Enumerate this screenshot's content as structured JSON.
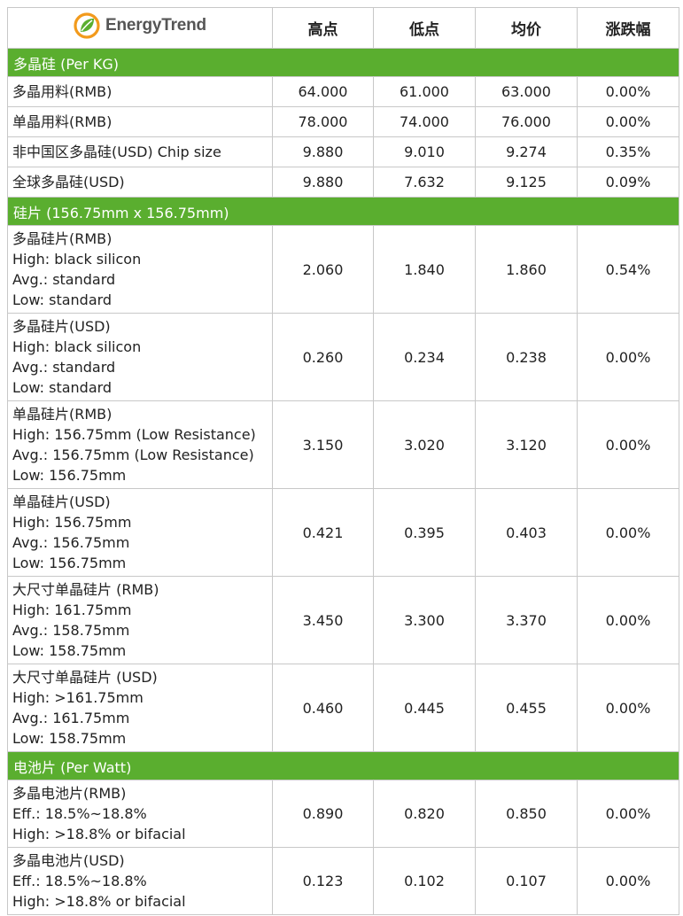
{
  "brand": {
    "name": "EnergyTrend",
    "colors": {
      "green": "#5aae2f",
      "orange": "#f29a1c"
    }
  },
  "columns": {
    "high": "高点",
    "low": "低点",
    "avg": "均价",
    "change": "涨跌幅"
  },
  "sections": [
    {
      "title": "多晶硅 (Per KG)",
      "rows": [
        {
          "lines": [
            "多晶用料(RMB)"
          ],
          "high": "64.000",
          "low": "61.000",
          "avg": "63.000",
          "change": "0.00%"
        },
        {
          "lines": [
            "单晶用料(RMB)"
          ],
          "high": "78.000",
          "low": "74.000",
          "avg": "76.000",
          "change": "0.00%"
        },
        {
          "lines": [
            "非中国区多晶硅(USD) Chip size"
          ],
          "high": "9.880",
          "low": "9.010",
          "avg": "9.274",
          "change": "0.35%"
        },
        {
          "lines": [
            "全球多晶硅(USD)"
          ],
          "high": "9.880",
          "low": "7.632",
          "avg": "9.125",
          "change": "0.09%"
        }
      ]
    },
    {
      "title": "硅片 (156.75mm x 156.75mm)",
      "rows": [
        {
          "lines": [
            "多晶硅片(RMB)",
            "High: black silicon",
            "Avg.: standard",
            "Low: standard"
          ],
          "high": "2.060",
          "low": "1.840",
          "avg": "1.860",
          "change": "0.54%"
        },
        {
          "lines": [
            "多晶硅片(USD)",
            "High: black silicon",
            "Avg.: standard",
            "Low: standard"
          ],
          "high": "0.260",
          "low": "0.234",
          "avg": "0.238",
          "change": "0.00%"
        },
        {
          "lines": [
            "单晶硅片(RMB)",
            "High: 156.75mm (Low Resistance)",
            "Avg.: 156.75mm (Low Resistance)",
            "Low: 156.75mm"
          ],
          "high": "3.150",
          "low": "3.020",
          "avg": "3.120",
          "change": "0.00%"
        },
        {
          "lines": [
            "单晶硅片(USD)",
            "High: 156.75mm",
            "Avg.: 156.75mm",
            "Low: 156.75mm"
          ],
          "high": "0.421",
          "low": "0.395",
          "avg": "0.403",
          "change": "0.00%"
        },
        {
          "lines": [
            "大尺寸单晶硅片 (RMB)",
            "High: 161.75mm",
            "Avg.: 158.75mm",
            "Low: 158.75mm"
          ],
          "high": "3.450",
          "low": "3.300",
          "avg": "3.370",
          "change": "0.00%"
        },
        {
          "lines": [
            "大尺寸单晶硅片 (USD)",
            "High: >161.75mm",
            "Avg.: 161.75mm",
            "Low: 158.75mm"
          ],
          "high": "0.460",
          "low": "0.445",
          "avg": "0.455",
          "change": "0.00%"
        }
      ]
    },
    {
      "title": "电池片 (Per Watt)",
      "rows": [
        {
          "lines": [
            "多晶电池片(RMB)",
            "Eff.: 18.5%~18.8%",
            "High: >18.8% or bifacial"
          ],
          "high": "0.890",
          "low": "0.820",
          "avg": "0.850",
          "change": "0.00%"
        },
        {
          "lines": [
            "多晶电池片(USD)",
            "Eff.: 18.5%~18.8%",
            "High: >18.8% or bifacial"
          ],
          "high": "0.123",
          "low": "0.102",
          "avg": "0.107",
          "change": "0.00%"
        }
      ]
    }
  ]
}
